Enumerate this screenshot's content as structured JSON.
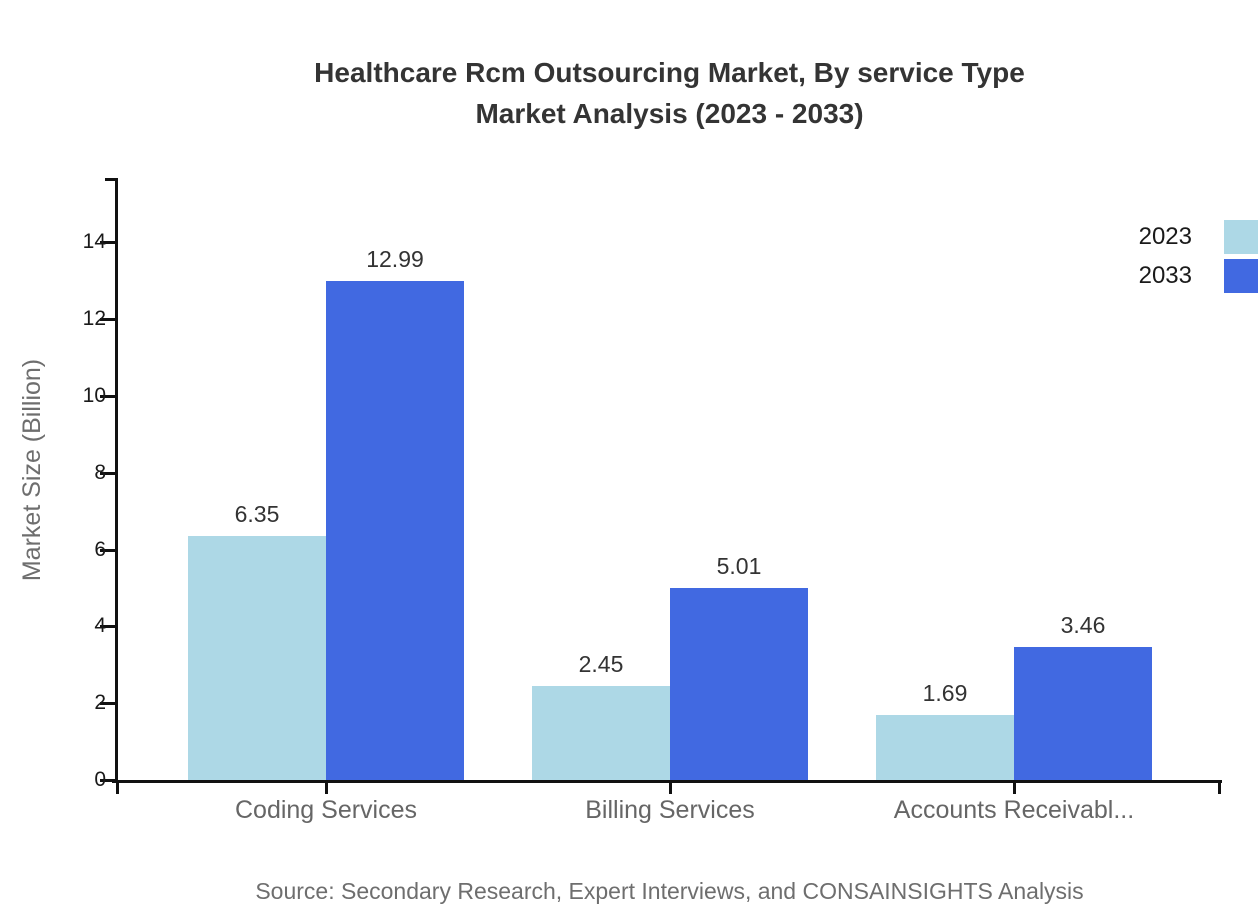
{
  "title": {
    "line1": "Healthcare Rcm Outsourcing Market, By service Type",
    "line2": "Market Analysis (2023 - 2033)"
  },
  "source": "Source: Secondary Research, Expert Interviews, and CONSAINSIGHTS Analysis",
  "colors": {
    "series_2023": "#ADD8E6",
    "series_2033": "#4169E1",
    "axis": "#111111",
    "title_text": "#343434",
    "muted_text": "#6e6e6e",
    "tick_text": "#1a1a1a",
    "value_text": "#333333"
  },
  "chart_data": {
    "type": "bar",
    "title": "Healthcare Rcm Outsourcing Market, By service Type",
    "subtitle": "Market Analysis (2023 - 2033)",
    "categories": [
      "Coding Services",
      "Billing Services",
      "Accounts Receivabl..."
    ],
    "series": [
      {
        "name": "2023",
        "color": "#ADD8E6",
        "values": [
          6.35,
          2.45,
          1.69
        ]
      },
      {
        "name": "2033",
        "color": "#4169E1",
        "values": [
          12.99,
          5.01,
          3.46
        ]
      }
    ],
    "xlabel": "",
    "ylabel": "Market Size (Billion)",
    "yticks": [
      0,
      2,
      4,
      6,
      8,
      10,
      12,
      14
    ],
    "ylim": [
      0,
      15.7
    ],
    "grid": false,
    "legend_position": "top-right",
    "value_labels": true,
    "value_label_format": "0.00"
  }
}
